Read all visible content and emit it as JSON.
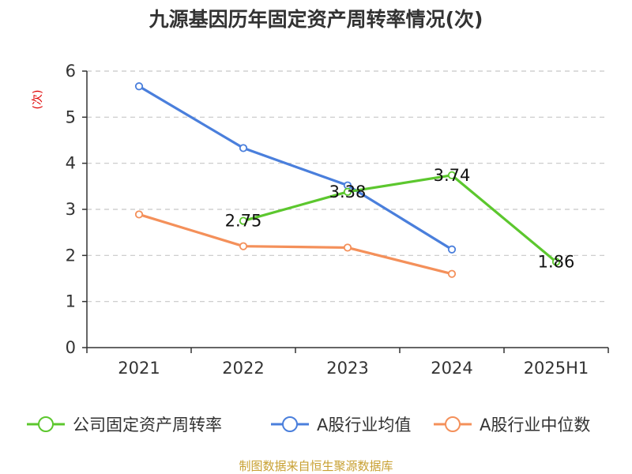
{
  "chart_data": {
    "type": "line",
    "title": "九源基因历年固定资产周转率情况(次)",
    "ylabel": "(次)",
    "xlabel": "",
    "categories": [
      "2021",
      "2022",
      "2023",
      "2024",
      "2025H1"
    ],
    "ylim": [
      0,
      6
    ],
    "yticks": [
      "0",
      "1",
      "2",
      "3",
      "4",
      "5",
      "6"
    ],
    "grid": true,
    "legend_position": "bottom",
    "series": [
      {
        "name": "公司固定资产周转率",
        "color": "#5cc72e",
        "values": [
          null,
          2.75,
          3.38,
          3.74,
          1.86
        ],
        "labels": [
          null,
          "2.75",
          "3.38",
          "3.74",
          "1.86"
        ]
      },
      {
        "name": "A股行业均值",
        "color": "#4a7fdc",
        "values": [
          5.67,
          4.33,
          3.52,
          2.13,
          null
        ],
        "labels": [
          null,
          null,
          null,
          null,
          null
        ]
      },
      {
        "name": "A股行业中位数",
        "color": "#f4905a",
        "values": [
          2.89,
          2.2,
          2.17,
          1.6,
          null
        ],
        "labels": [
          null,
          null,
          null,
          null,
          null
        ]
      }
    ]
  },
  "source_text": "制图数据来自恒生聚源数据库"
}
